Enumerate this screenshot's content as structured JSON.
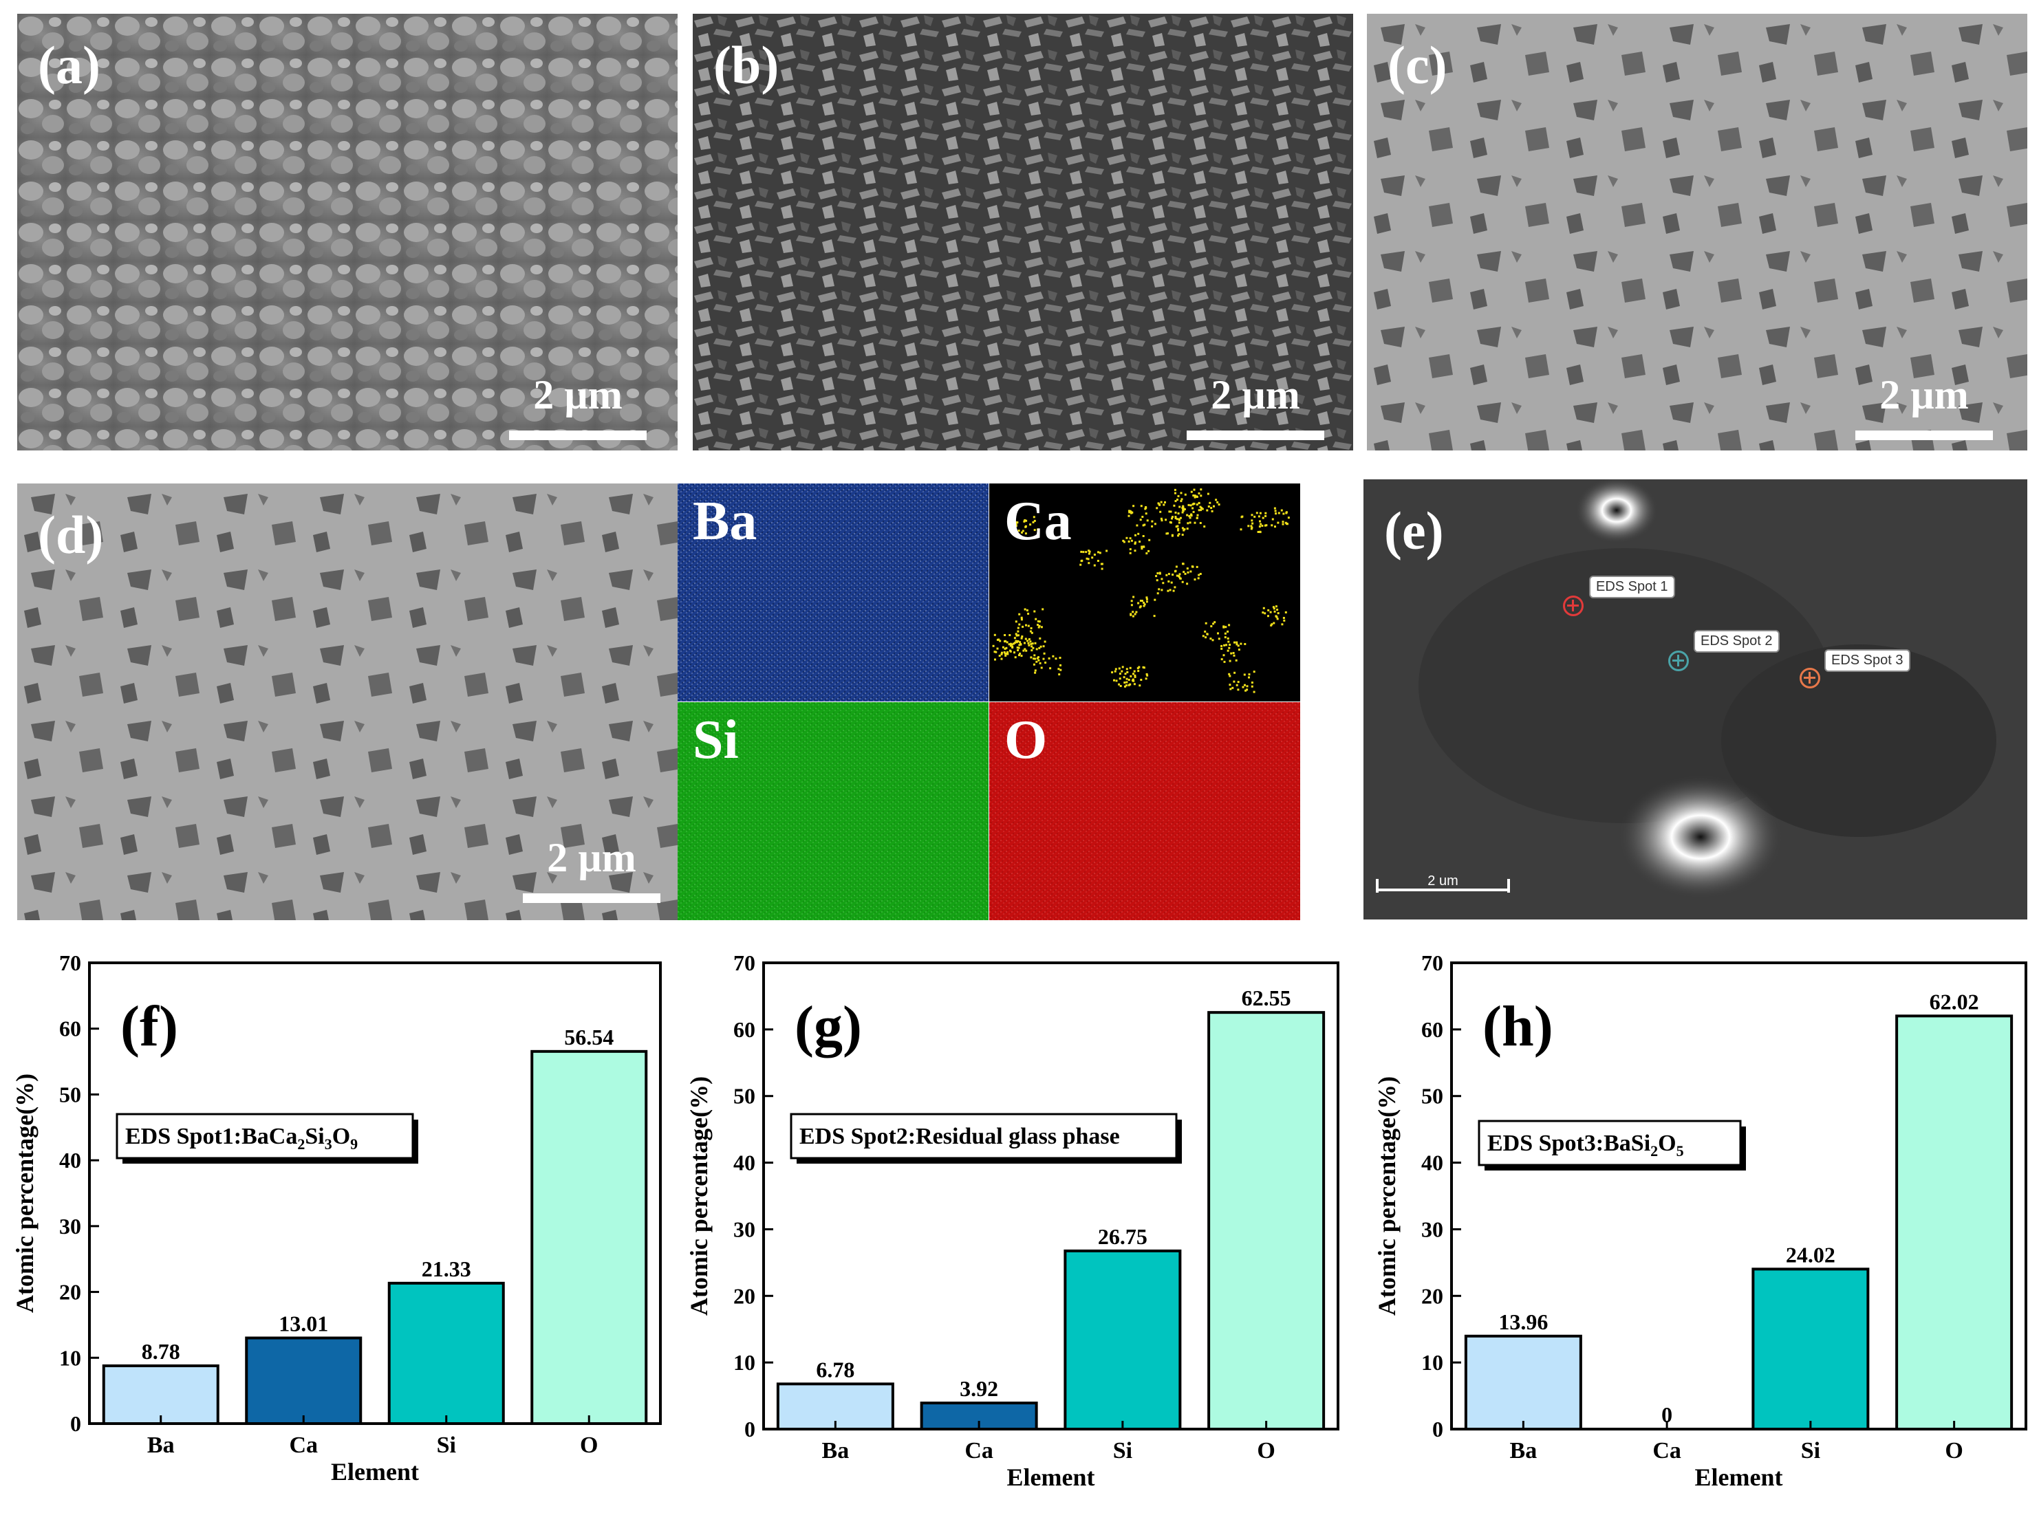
{
  "panels": {
    "a": {
      "label": "(a)",
      "scale": "2 µm"
    },
    "b": {
      "label": "(b)",
      "scale": "2 µm"
    },
    "c": {
      "label": "(c)",
      "scale": "2 µm"
    },
    "d": {
      "label": "(d)",
      "scale": "2 µm"
    },
    "e": {
      "label": "(e)",
      "scale": "2 um",
      "spots": [
        "EDS Spot 1",
        "EDS Spot 2",
        "EDS Spot 3"
      ],
      "spot_colors": [
        "#e23a3a",
        "#4aa3a8",
        "#e8784a"
      ]
    }
  },
  "maps": [
    {
      "element": "Ba",
      "color": "#2a5bd6",
      "label_color": "#ffffff"
    },
    {
      "element": "Ca",
      "color": "#f2e11a",
      "label_color": "#ffffff"
    },
    {
      "element": "Si",
      "color": "#19c419",
      "label_color": "#ffffff"
    },
    {
      "element": "O",
      "color": "#e81212",
      "label_color": "#ffffff"
    }
  ],
  "chart_data": [
    {
      "type": "bar",
      "panel": "(f)",
      "categories": [
        "Ba",
        "Ca",
        "Si",
        "O"
      ],
      "values": [
        8.78,
        13.01,
        21.33,
        56.54
      ],
      "value_labels": [
        "8.78",
        "13.01",
        "21.33",
        "56.54"
      ],
      "legend": {
        "prefix": "EDS Spot1:",
        "formula": [
          [
            "BaCa",
            ""
          ],
          [
            "2",
            "sub"
          ],
          [
            "Si",
            ""
          ],
          [
            "3",
            "sub"
          ],
          [
            "O",
            ""
          ],
          [
            "9",
            "sub"
          ]
        ]
      },
      "xlabel": "Element",
      "ylabel": "Atomic percentage(%)",
      "ylim": [
        0,
        70
      ],
      "yticks": [
        "0",
        "10",
        "20",
        "30",
        "40",
        "50",
        "60",
        "70"
      ]
    },
    {
      "type": "bar",
      "panel": "(g)",
      "categories": [
        "Ba",
        "Ca",
        "Si",
        "O"
      ],
      "values": [
        6.78,
        3.92,
        26.75,
        62.55
      ],
      "value_labels": [
        "6.78",
        "3.92",
        "26.75",
        "62.55"
      ],
      "legend": {
        "prefix": "EDS Spot2:",
        "formula": [
          [
            "Residual glass phase",
            ""
          ]
        ]
      },
      "xlabel": "Element",
      "ylabel": "Atomic percentage(%)",
      "ylim": [
        0,
        70
      ],
      "yticks": [
        "0",
        "10",
        "20",
        "30",
        "40",
        "50",
        "60",
        "70"
      ]
    },
    {
      "type": "bar",
      "panel": "(h)",
      "categories": [
        "Ba",
        "Ca",
        "Si",
        "O"
      ],
      "values": [
        13.96,
        0,
        24.02,
        62.02
      ],
      "value_labels": [
        "13.96",
        "0",
        "24.02",
        "62.02"
      ],
      "legend": {
        "prefix": "EDS Spot3:",
        "formula": [
          [
            "BaSi",
            ""
          ],
          [
            "2",
            "sub"
          ],
          [
            "O",
            ""
          ],
          [
            "5",
            "sub"
          ]
        ]
      },
      "xlabel": "Element",
      "ylabel": "Atomic percentage(%)",
      "ylim": [
        0,
        70
      ],
      "yticks": [
        "0",
        "10",
        "20",
        "30",
        "40",
        "50",
        "60",
        "70"
      ]
    }
  ],
  "bar_colors": [
    "#bfe3fb",
    "#0e67a6",
    "#00c4bf",
    "#adfbe1"
  ]
}
